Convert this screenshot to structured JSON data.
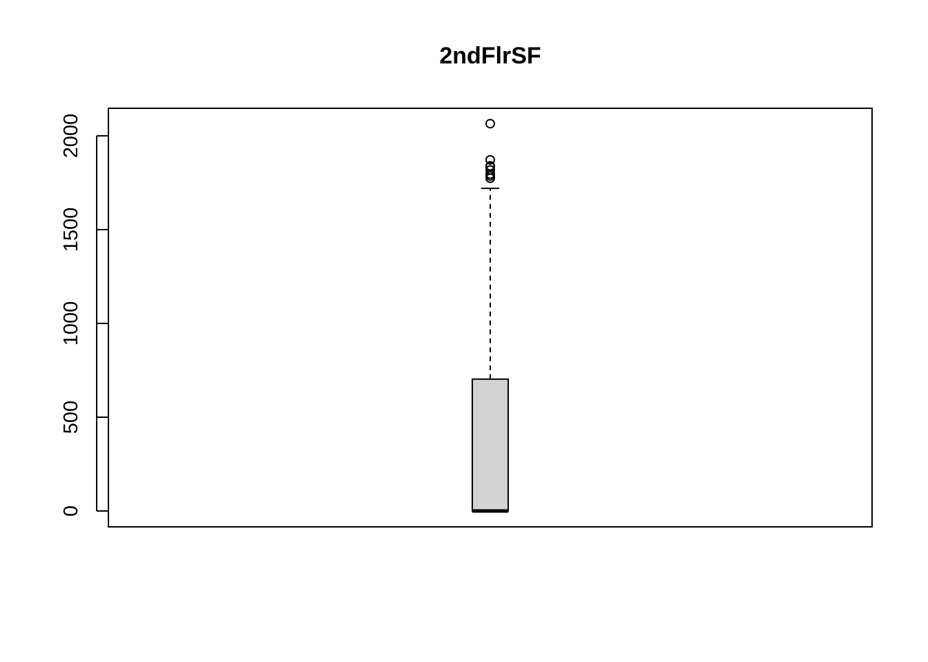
{
  "chart_data": {
    "type": "boxplot",
    "title": "2ndFlrSF",
    "xlabel": "",
    "ylabel": "",
    "ylim": [
      -83,
      2150
    ],
    "y_ticks": [
      0,
      500,
      1000,
      1500,
      2000
    ],
    "y_tick_labels": [
      "0",
      "500",
      "1000",
      "1500",
      "2000"
    ],
    "grid": false,
    "box": {
      "min": 0,
      "q1": 0,
      "median": 0,
      "q3": 703,
      "whisker_low": 0,
      "whisker_high": 1720,
      "fill_color": "#d3d3d3"
    },
    "outliers": [
      1774,
      1786,
      1796,
      1818,
      1836,
      1840,
      1872,
      2065
    ]
  }
}
